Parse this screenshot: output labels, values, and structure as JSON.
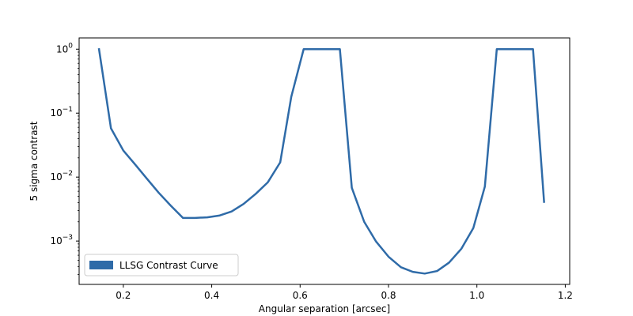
{
  "chart_data": {
    "type": "line",
    "title": "",
    "xlabel": "Angular separation [arcsec]",
    "ylabel": "5 sigma contrast",
    "xlim": [
      0.1,
      1.21
    ],
    "ylim": [
      0.00021,
      1.5
    ],
    "yscale": "log",
    "grid": false,
    "legend_position": "lower left",
    "x_ticks": [
      {
        "value": 0.2,
        "label": "0.2"
      },
      {
        "value": 0.4,
        "label": "0.4"
      },
      {
        "value": 0.6,
        "label": "0.6"
      },
      {
        "value": 0.8,
        "label": "0.8"
      },
      {
        "value": 1.0,
        "label": "1.0"
      },
      {
        "value": 1.2,
        "label": "1.2"
      }
    ],
    "y_ticks": [
      {
        "value": 0.001,
        "base": "10",
        "exp": "−3"
      },
      {
        "value": 0.01,
        "base": "10",
        "exp": "−2"
      },
      {
        "value": 0.1,
        "base": "10",
        "exp": "−1"
      },
      {
        "value": 1,
        "base": "10",
        "exp": "0"
      }
    ],
    "series": [
      {
        "name": "LLSG Contrast Curve",
        "color": "#2f6ba8",
        "points": [
          [
            0.145,
            1.0
          ],
          [
            0.172,
            0.058
          ],
          [
            0.2,
            0.026
          ],
          [
            0.226,
            0.016
          ],
          [
            0.253,
            0.0095
          ],
          [
            0.28,
            0.0057
          ],
          [
            0.307,
            0.0036
          ],
          [
            0.335,
            0.0023
          ],
          [
            0.362,
            0.0023
          ],
          [
            0.39,
            0.00235
          ],
          [
            0.417,
            0.0025
          ],
          [
            0.445,
            0.0029
          ],
          [
            0.472,
            0.0038
          ],
          [
            0.5,
            0.0055
          ],
          [
            0.527,
            0.0083
          ],
          [
            0.555,
            0.017
          ],
          [
            0.58,
            0.18
          ],
          [
            0.608,
            1.0
          ],
          [
            0.635,
            1.0
          ],
          [
            0.663,
            1.0
          ],
          [
            0.69,
            1.0
          ],
          [
            0.717,
            0.0068
          ],
          [
            0.745,
            0.002
          ],
          [
            0.772,
            0.00098
          ],
          [
            0.8,
            0.00057
          ],
          [
            0.828,
            0.00039
          ],
          [
            0.855,
            0.00033
          ],
          [
            0.882,
            0.00031
          ],
          [
            0.91,
            0.00034
          ],
          [
            0.937,
            0.00046
          ],
          [
            0.965,
            0.00076
          ],
          [
            0.992,
            0.0016
          ],
          [
            1.018,
            0.0071
          ],
          [
            1.045,
            1.0
          ],
          [
            1.072,
            1.0
          ],
          [
            1.1,
            1.0
          ],
          [
            1.127,
            1.0
          ],
          [
            1.152,
            0.0041
          ]
        ]
      }
    ]
  }
}
